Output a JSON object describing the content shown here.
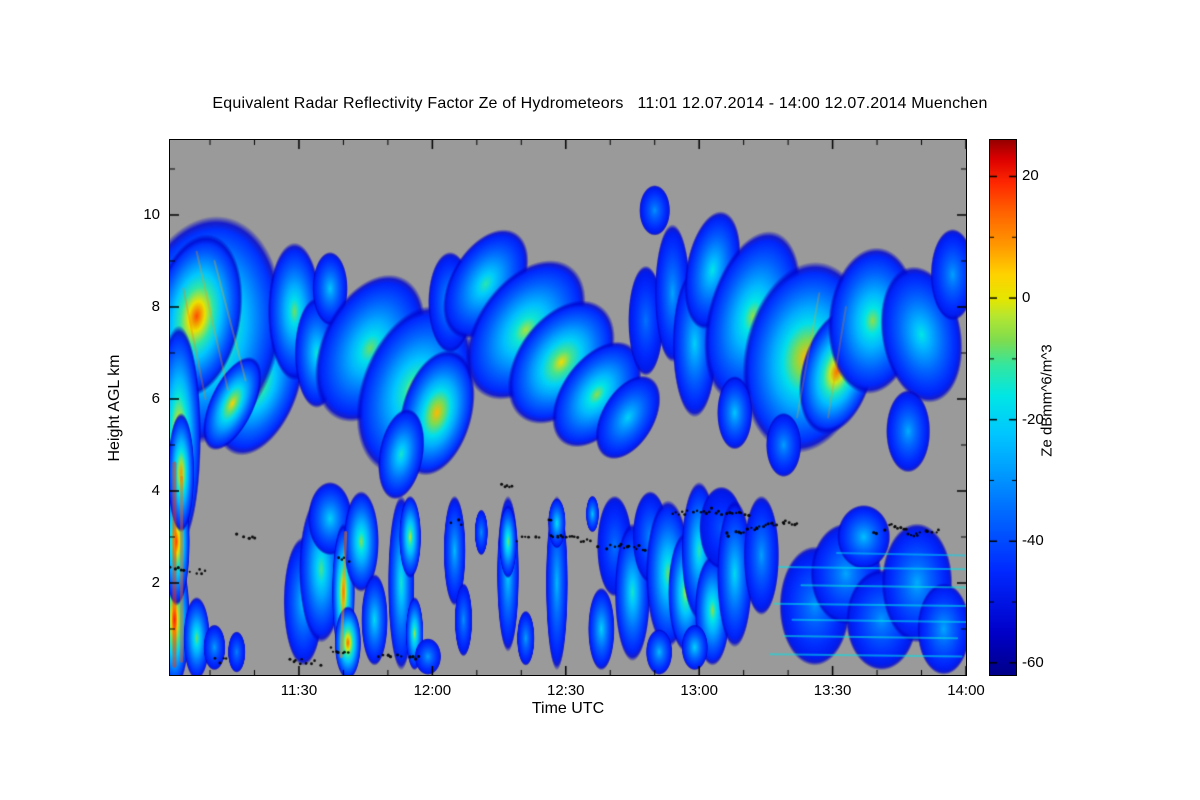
{
  "chart_data": {
    "type": "heatmap",
    "title": "Equivalent Radar Reflectivity Factor Ze of Hydrometeors   11:01 12.07.2014 - 14:00 12.07.2014 Muenchen",
    "x_label": "Time UTC",
    "y_label": "Height AGL km",
    "x_start": "11:01",
    "x_end": "14:00",
    "x_span_minutes": 179,
    "y_range_km": [
      0,
      11.63
    ],
    "x_ticks": [
      {
        "label": "11:30",
        "t": 29
      },
      {
        "label": "12:00",
        "t": 59
      },
      {
        "label": "12:30",
        "t": 89
      },
      {
        "label": "13:00",
        "t": 119
      },
      {
        "label": "13:30",
        "t": 149
      },
      {
        "label": "14:00",
        "t": 179
      }
    ],
    "x_minor_step_min": 10,
    "y_ticks": [
      {
        "label": "2",
        "km": 2
      },
      {
        "label": "4",
        "km": 4
      },
      {
        "label": "6",
        "km": 6
      },
      {
        "label": "8",
        "km": 8
      },
      {
        "label": "10",
        "km": 10
      }
    ],
    "y_minor_step_km": 1,
    "background_color": "#9a9a9a",
    "colorbar": {
      "label": "Ze dBmm^6/m^3",
      "min": -62,
      "max": 26,
      "ticks": [
        {
          "label": "20",
          "v": 20
        },
        {
          "label": "0",
          "v": 0
        },
        {
          "label": "-20",
          "v": -20
        },
        {
          "label": "-40",
          "v": -40
        },
        {
          "label": "-60",
          "v": -60
        }
      ],
      "minor_tick_values": [
        10,
        -10,
        -30,
        -50
      ]
    },
    "colormap": [
      [
        -63,
        "#00007F"
      ],
      [
        -55,
        "#0000C8"
      ],
      [
        -45,
        "#0028FF"
      ],
      [
        -36,
        "#0064FF"
      ],
      [
        -28,
        "#00A0FF"
      ],
      [
        -22,
        "#00C8FF"
      ],
      [
        -16,
        "#00E6E6"
      ],
      [
        -11,
        "#33E6A0"
      ],
      [
        -7,
        "#7DDC50"
      ],
      [
        -3,
        "#B4E632"
      ],
      [
        0,
        "#E6E600"
      ],
      [
        4,
        "#FFD200"
      ],
      [
        9,
        "#FF9600"
      ],
      [
        14,
        "#FF6400"
      ],
      [
        19,
        "#FF2800"
      ],
      [
        23,
        "#DC0000"
      ],
      [
        27,
        "#800000"
      ]
    ],
    "clouds": [
      {
        "t": 20,
        "z": 6.3,
        "rt": 9,
        "rz": 1.6,
        "v": -2,
        "rot": 20
      },
      {
        "t": 8,
        "z": 7.5,
        "rt": 17,
        "rz": 2.5,
        "v": 12,
        "rot": 10
      },
      {
        "t": 6,
        "z": 7.8,
        "rt": 10,
        "rz": 1.8,
        "v": 16,
        "rot": 10
      },
      {
        "t": 2,
        "z": 5.2,
        "rt": 5,
        "rz": 2.4,
        "v": 10,
        "rot": 0
      },
      {
        "t": 14,
        "z": 5.9,
        "rt": 5,
        "rz": 1.1,
        "v": 4,
        "rot": 25
      },
      {
        "t": 28,
        "z": 7.9,
        "rt": 6,
        "rz": 1.5,
        "v": -8,
        "rot": 0
      },
      {
        "t": 33,
        "z": 7.0,
        "rt": 5,
        "rz": 1.2,
        "v": -15,
        "rot": 0
      },
      {
        "t": 36,
        "z": 8.4,
        "rt": 4,
        "rz": 0.8,
        "v": -22,
        "rot": 0
      },
      {
        "t": 45,
        "z": 7.1,
        "rt": 11,
        "rz": 1.7,
        "v": -8,
        "rot": 25
      },
      {
        "t": 55,
        "z": 6.2,
        "rt": 12,
        "rz": 1.9,
        "v": -2,
        "rot": 20
      },
      {
        "t": 60,
        "z": 5.7,
        "rt": 8,
        "rz": 1.4,
        "v": 6,
        "rot": 15
      },
      {
        "t": 52,
        "z": 4.8,
        "rt": 5,
        "rz": 1.0,
        "v": -14,
        "rot": 10
      },
      {
        "t": 63,
        "z": 8.1,
        "rt": 5,
        "rz": 1.1,
        "v": -26,
        "rot": 0
      },
      {
        "t": 71,
        "z": 8.5,
        "rt": 8,
        "rz": 1.3,
        "v": -12,
        "rot": 30
      },
      {
        "t": 80,
        "z": 7.5,
        "rt": 11,
        "rz": 1.7,
        "v": -4,
        "rot": 35
      },
      {
        "t": 88,
        "z": 6.8,
        "rt": 10,
        "rz": 1.5,
        "v": 2,
        "rot": 35
      },
      {
        "t": 96,
        "z": 6.1,
        "rt": 8,
        "rz": 1.3,
        "v": -6,
        "rot": 35
      },
      {
        "t": 103,
        "z": 5.6,
        "rt": 6,
        "rz": 1.0,
        "v": -20,
        "rot": 30
      },
      {
        "t": 109,
        "z": 10.1,
        "rt": 3.5,
        "rz": 0.55,
        "v": -30,
        "rot": 0
      },
      {
        "t": 107,
        "z": 7.7,
        "rt": 4,
        "rz": 1.2,
        "v": -34,
        "rot": 0
      },
      {
        "t": 113,
        "z": 8.3,
        "rt": 4,
        "rz": 1.5,
        "v": -27,
        "rot": 0
      },
      {
        "t": 118,
        "z": 7.2,
        "rt": 5,
        "rz": 1.6,
        "v": -20,
        "rot": 0
      },
      {
        "t": 122,
        "z": 8.8,
        "rt": 6,
        "rz": 1.3,
        "v": -16,
        "rot": 10
      },
      {
        "t": 131,
        "z": 7.8,
        "rt": 10,
        "rz": 1.9,
        "v": -6,
        "rot": 15
      },
      {
        "t": 143,
        "z": 6.9,
        "rt": 14,
        "rz": 2.1,
        "v": 6,
        "rot": 10
      },
      {
        "t": 150,
        "z": 6.6,
        "rt": 8,
        "rz": 1.4,
        "v": 13,
        "rot": 15
      },
      {
        "t": 158,
        "z": 7.7,
        "rt": 10,
        "rz": 1.6,
        "v": -6,
        "rot": 5
      },
      {
        "t": 169,
        "z": 7.4,
        "rt": 9,
        "rz": 1.5,
        "v": -16,
        "rot": -10
      },
      {
        "t": 176,
        "z": 8.7,
        "rt": 5,
        "rz": 1.0,
        "v": -28,
        "rot": 0
      },
      {
        "t": 166,
        "z": 5.3,
        "rt": 5,
        "rz": 0.9,
        "v": -26,
        "rot": 0
      },
      {
        "t": 138,
        "z": 5.0,
        "rt": 4,
        "rz": 0.7,
        "v": -28,
        "rot": 0
      },
      {
        "t": 127,
        "z": 5.7,
        "rt": 4,
        "rz": 0.8,
        "v": -22,
        "rot": 0
      },
      {
        "t": 1,
        "z": 1.2,
        "rt": 3.5,
        "rz": 1.5,
        "v": 20,
        "rot": 0
      },
      {
        "t": 1.5,
        "z": 2.9,
        "rt": 3,
        "rz": 1.4,
        "v": 16,
        "rot": 0
      },
      {
        "t": 2.5,
        "z": 4.4,
        "rt": 3,
        "rz": 1.3,
        "v": 9,
        "rot": 0
      },
      {
        "t": 6,
        "z": 0.8,
        "rt": 3,
        "rz": 0.9,
        "v": -8,
        "rot": 0
      },
      {
        "t": 10,
        "z": 0.6,
        "rt": 2.5,
        "rz": 0.5,
        "v": -28,
        "rot": 0
      },
      {
        "t": 15,
        "z": 0.5,
        "rt": 2,
        "rz": 0.45,
        "v": -32,
        "rot": 0
      },
      {
        "t": 30,
        "z": 1.6,
        "rt": 4.5,
        "rz": 1.4,
        "v": -22,
        "rot": 0
      },
      {
        "t": 34,
        "z": 2.3,
        "rt": 5,
        "rz": 1.6,
        "v": -10,
        "rot": 0
      },
      {
        "t": 36,
        "z": 3.4,
        "rt": 5,
        "rz": 0.8,
        "v": -20,
        "rot": 0
      },
      {
        "t": 39,
        "z": 1.8,
        "rt": 2.6,
        "rz": 1.5,
        "v": 12,
        "rot": 0
      },
      {
        "t": 40,
        "z": 0.7,
        "rt": 3,
        "rz": 0.8,
        "v": 14,
        "rot": 0
      },
      {
        "t": 43,
        "z": 2.9,
        "rt": 4,
        "rz": 1.1,
        "v": -6,
        "rot": 0
      },
      {
        "t": 46,
        "z": 1.2,
        "rt": 3,
        "rz": 1.0,
        "v": -18,
        "rot": 0
      },
      {
        "t": 52,
        "z": 2.0,
        "rt": 3,
        "rz": 1.9,
        "v": -14,
        "rot": 0
      },
      {
        "t": 54,
        "z": 3.0,
        "rt": 2.5,
        "rz": 0.9,
        "v": -2,
        "rot": 0
      },
      {
        "t": 55,
        "z": 0.9,
        "rt": 2,
        "rz": 0.8,
        "v": -4,
        "rot": 0
      },
      {
        "t": 58,
        "z": 0.4,
        "rt": 3,
        "rz": 0.4,
        "v": -28,
        "rot": 0
      },
      {
        "t": 64,
        "z": 2.7,
        "rt": 2.5,
        "rz": 1.2,
        "v": -24,
        "rot": 0
      },
      {
        "t": 66,
        "z": 1.2,
        "rt": 2,
        "rz": 0.8,
        "v": -30,
        "rot": 0
      },
      {
        "t": 70,
        "z": 3.1,
        "rt": 1.5,
        "rz": 0.5,
        "v": -30,
        "rot": 0
      },
      {
        "t": 76,
        "z": 2.2,
        "rt": 2.5,
        "rz": 1.7,
        "v": -20,
        "rot": 0
      },
      {
        "t": 76,
        "z": 2.9,
        "rt": 2,
        "rz": 0.8,
        "v": -6,
        "rot": 0
      },
      {
        "t": 80,
        "z": 0.8,
        "rt": 2,
        "rz": 0.6,
        "v": -28,
        "rot": 0
      },
      {
        "t": 87,
        "z": 2.0,
        "rt": 2.5,
        "rz": 1.9,
        "v": -24,
        "rot": 0
      },
      {
        "t": 87,
        "z": 3.3,
        "rt": 2,
        "rz": 0.55,
        "v": -17,
        "rot": 0
      },
      {
        "t": 95,
        "z": 3.5,
        "rt": 1.5,
        "rz": 0.4,
        "v": -22,
        "rot": 0
      },
      {
        "t": 97,
        "z": 1.0,
        "rt": 3,
        "rz": 0.9,
        "v": -20,
        "rot": 0
      },
      {
        "t": 100,
        "z": 2.8,
        "rt": 4,
        "rz": 1.1,
        "v": -34,
        "rot": 0
      },
      {
        "t": 104,
        "z": 1.8,
        "rt": 4,
        "rz": 1.5,
        "v": -14,
        "rot": 0
      },
      {
        "t": 108,
        "z": 3.0,
        "rt": 4,
        "rz": 1.0,
        "v": -30,
        "rot": 0
      },
      {
        "t": 112,
        "z": 2.2,
        "rt": 5,
        "rz": 1.6,
        "v": -8,
        "rot": 0
      },
      {
        "t": 116,
        "z": 1.8,
        "rt": 4,
        "rz": 1.3,
        "v": -2,
        "rot": 0
      },
      {
        "t": 119,
        "z": 2.7,
        "rt": 4,
        "rz": 1.5,
        "v": -12,
        "rot": 0
      },
      {
        "t": 122,
        "z": 1.4,
        "rt": 4,
        "rz": 1.2,
        "v": -6,
        "rot": 0
      },
      {
        "t": 124,
        "z": 3.2,
        "rt": 5,
        "rz": 0.9,
        "v": -38,
        "rot": 0
      },
      {
        "t": 127,
        "z": 2.2,
        "rt": 4,
        "rz": 1.6,
        "v": -18,
        "rot": 0
      },
      {
        "t": 110,
        "z": 0.5,
        "rt": 3,
        "rz": 0.5,
        "v": -24,
        "rot": 0
      },
      {
        "t": 118,
        "z": 0.6,
        "rt": 3,
        "rz": 0.5,
        "v": -20,
        "rot": 0
      },
      {
        "t": 133,
        "z": 2.6,
        "rt": 4,
        "rz": 1.3,
        "v": -28,
        "rot": 0
      },
      {
        "t": 145,
        "z": 1.5,
        "rt": 8,
        "rz": 1.3,
        "v": -30,
        "rot": 0
      },
      {
        "t": 152,
        "z": 2.2,
        "rt": 8,
        "rz": 1.1,
        "v": -27,
        "rot": 0
      },
      {
        "t": 160,
        "z": 1.2,
        "rt": 8,
        "rz": 1.1,
        "v": -29,
        "rot": 0
      },
      {
        "t": 168,
        "z": 2.0,
        "rt": 8,
        "rz": 1.3,
        "v": -26,
        "rot": 0
      },
      {
        "t": 174,
        "z": 1.0,
        "rt": 6,
        "rz": 1.0,
        "v": -27,
        "rot": 0
      },
      {
        "t": 156,
        "z": 3.0,
        "rt": 6,
        "rz": 0.7,
        "v": -23,
        "rot": 0
      }
    ],
    "streaks": [
      {
        "pts": [
          [
            135,
            0.45
          ],
          [
            178,
            0.4
          ]
        ],
        "v": -17,
        "w": 2,
        "a": 0.55
      },
      {
        "pts": [
          [
            138,
            0.85
          ],
          [
            177,
            0.8
          ]
        ],
        "v": -15,
        "w": 2,
        "a": 0.55
      },
      {
        "pts": [
          [
            140,
            1.2
          ],
          [
            179,
            1.15
          ]
        ],
        "v": -17,
        "w": 2,
        "a": 0.55
      },
      {
        "pts": [
          [
            136,
            1.55
          ],
          [
            179,
            1.5
          ]
        ],
        "v": -16,
        "w": 2,
        "a": 0.55
      },
      {
        "pts": [
          [
            142,
            1.95
          ],
          [
            179,
            1.9
          ]
        ],
        "v": -15,
        "w": 2,
        "a": 0.55
      },
      {
        "pts": [
          [
            137,
            2.35
          ],
          [
            179,
            2.3
          ]
        ],
        "v": -17,
        "w": 2,
        "a": 0.55
      },
      {
        "pts": [
          [
            150,
            2.65
          ],
          [
            179,
            2.6
          ]
        ],
        "v": -19,
        "w": 2,
        "a": 0.5
      },
      {
        "pts": [
          [
            1,
            0.2
          ],
          [
            1,
            4.6
          ]
        ],
        "v": 19,
        "w": 4,
        "a": 0.5
      },
      {
        "pts": [
          [
            2.6,
            0.3
          ],
          [
            2.6,
            4.3
          ]
        ],
        "v": 15,
        "w": 3,
        "a": 0.45
      },
      {
        "pts": [
          [
            38.5,
            0.4
          ],
          [
            39.5,
            3.1
          ]
        ],
        "v": 10,
        "w": 3,
        "a": 0.5
      },
      {
        "pts": [
          [
            6,
            9.2
          ],
          [
            13,
            6.2
          ]
        ],
        "v": 9,
        "w": 2,
        "a": 0.3
      },
      {
        "pts": [
          [
            10,
            9.0
          ],
          [
            17,
            6.4
          ]
        ],
        "v": 7,
        "w": 2,
        "a": 0.3
      },
      {
        "pts": [
          [
            3,
            8.4
          ],
          [
            8,
            6.0
          ]
        ],
        "v": 12,
        "w": 2,
        "a": 0.3
      },
      {
        "pts": [
          [
            146,
            8.3
          ],
          [
            141,
            5.6
          ]
        ],
        "v": 8,
        "w": 2,
        "a": 0.25
      },
      {
        "pts": [
          [
            152,
            8.0
          ],
          [
            148,
            5.6
          ]
        ],
        "v": 10,
        "w": 2,
        "a": 0.25
      }
    ],
    "black_tracks": [
      [
        [
          0,
          2.3
        ],
        [
          8,
          2.25
        ]
      ],
      [
        [
          10,
          0.32
        ],
        [
          14,
          0.3
        ]
      ],
      [
        [
          15,
          3.05
        ],
        [
          19,
          3.0
        ]
      ],
      [
        [
          27,
          0.3
        ],
        [
          34,
          0.27
        ]
      ],
      [
        [
          36,
          0.55
        ],
        [
          40,
          0.5
        ]
      ],
      [
        [
          38,
          2.55
        ],
        [
          41,
          2.5
        ]
      ],
      [
        [
          47,
          0.4
        ],
        [
          56,
          0.35
        ]
      ],
      [
        [
          63,
          3.35
        ],
        [
          66,
          3.3
        ]
      ],
      [
        [
          74,
          4.15
        ],
        [
          77,
          4.1
        ]
      ],
      [
        [
          78,
          2.95
        ],
        [
          87,
          3.02
        ],
        [
          95,
          2.9
        ]
      ],
      [
        [
          85,
          3.35
        ],
        [
          88,
          3.3
        ]
      ],
      [
        [
          96,
          2.75
        ],
        [
          103,
          2.82
        ],
        [
          108,
          2.72
        ]
      ],
      [
        [
          113,
          3.5
        ],
        [
          122,
          3.58
        ],
        [
          130,
          3.45
        ]
      ],
      [
        [
          125,
          3.05
        ],
        [
          132,
          3.2
        ],
        [
          138,
          3.35
        ],
        [
          141,
          3.28
        ]
      ],
      [
        [
          158,
          3.05
        ],
        [
          163,
          3.25
        ],
        [
          168,
          3.05
        ],
        [
          173,
          3.15
        ]
      ]
    ]
  }
}
